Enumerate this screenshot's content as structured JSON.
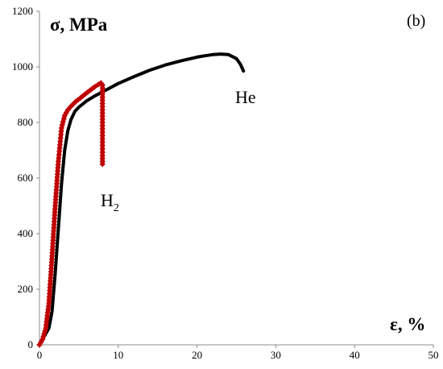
{
  "chart_data": {
    "type": "line",
    "panel_label": "(b)",
    "xlabel": "ε, %",
    "ylabel": "σ, MPa",
    "xlim": [
      0,
      50
    ],
    "ylim": [
      0,
      1200
    ],
    "x_ticks": [
      "0",
      "10",
      "20",
      "30",
      "40",
      "50"
    ],
    "y_ticks": [
      "0",
      "200",
      "400",
      "600",
      "800",
      "1000",
      "1200"
    ],
    "grid": false,
    "legend": "none",
    "series": [
      {
        "name": "He",
        "color": "#000000",
        "marker": "line",
        "x": [
          0,
          0.6,
          1.2,
          1.6,
          2.0,
          2.4,
          2.8,
          3.2,
          3.6,
          4.0,
          4.5,
          5,
          6,
          7,
          8,
          9,
          10,
          12,
          14,
          16,
          18,
          20,
          21,
          22,
          23,
          24,
          25,
          25.5,
          25.9
        ],
        "y": [
          0,
          30,
          60,
          120,
          260,
          420,
          580,
          700,
          770,
          810,
          840,
          855,
          878,
          895,
          910,
          925,
          940,
          965,
          988,
          1007,
          1022,
          1035,
          1040,
          1044,
          1046,
          1044,
          1030,
          1010,
          985
        ]
      },
      {
        "name": "H",
        "name_subscript": "2",
        "color": "#c00000",
        "marker": "diamond",
        "x": [
          0,
          0.4,
          0.8,
          1.2,
          1.6,
          2.0,
          2.4,
          2.8,
          3.2,
          3.6,
          4.0,
          4.6,
          5.2,
          5.8,
          6.4,
          7.0,
          7.5,
          7.8,
          8.0,
          8.0,
          8.0,
          8.0,
          8.0,
          8.0
        ],
        "y": [
          0,
          20,
          60,
          150,
          320,
          500,
          660,
          780,
          825,
          845,
          858,
          875,
          888,
          902,
          915,
          928,
          937,
          942,
          935,
          880,
          800,
          730,
          680,
          650
        ]
      }
    ]
  }
}
